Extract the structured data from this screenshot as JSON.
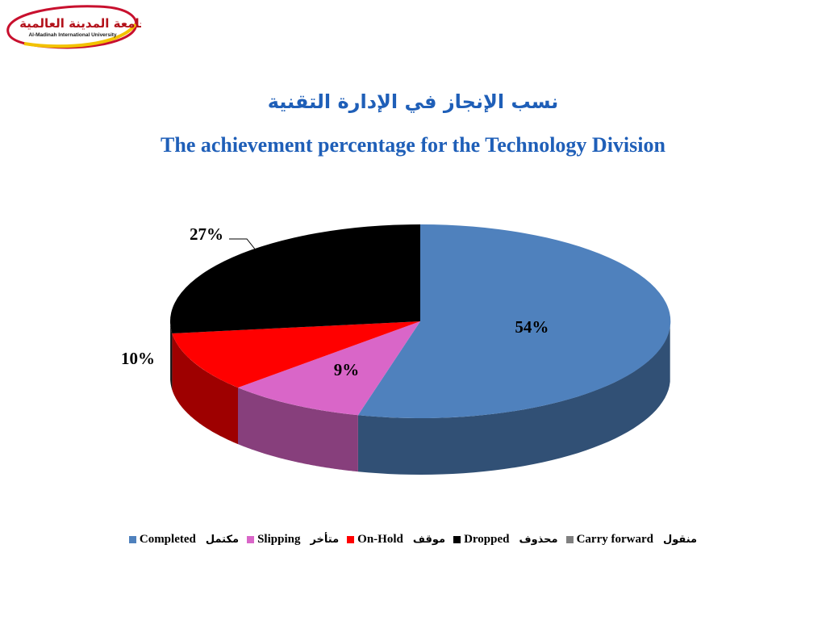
{
  "logo": {
    "arabic": "جامعة المدينة العالمية",
    "english": "Al-Madinah International University"
  },
  "title_ar": "نسب الإنجاز في الإدارة التقنية",
  "title_en": "The achievement percentage for the Technology Division",
  "chart_data": {
    "type": "pie",
    "style": "3d",
    "title": "The achievement percentage for the Technology Division",
    "legend_position": "bottom",
    "slices": [
      {
        "label": "Completed",
        "label_ar": "مكتمل",
        "value": 54,
        "data_label": "54%",
        "color": "#4f81bd"
      },
      {
        "label": "Slipping",
        "label_ar": "متأخر",
        "value": 9,
        "data_label": "9%",
        "color": "#d966c8"
      },
      {
        "label": "On-Hold",
        "label_ar": "موقف",
        "value": 10,
        "data_label": "10%",
        "color": "#ff0000"
      },
      {
        "label": "Dropped",
        "label_ar": "محذوف",
        "value": 27,
        "data_label": "27%",
        "color": "#000000"
      },
      {
        "label": "Carry forward",
        "label_ar": "منقول",
        "value": 0,
        "data_label": "",
        "color": "#808080"
      }
    ]
  }
}
